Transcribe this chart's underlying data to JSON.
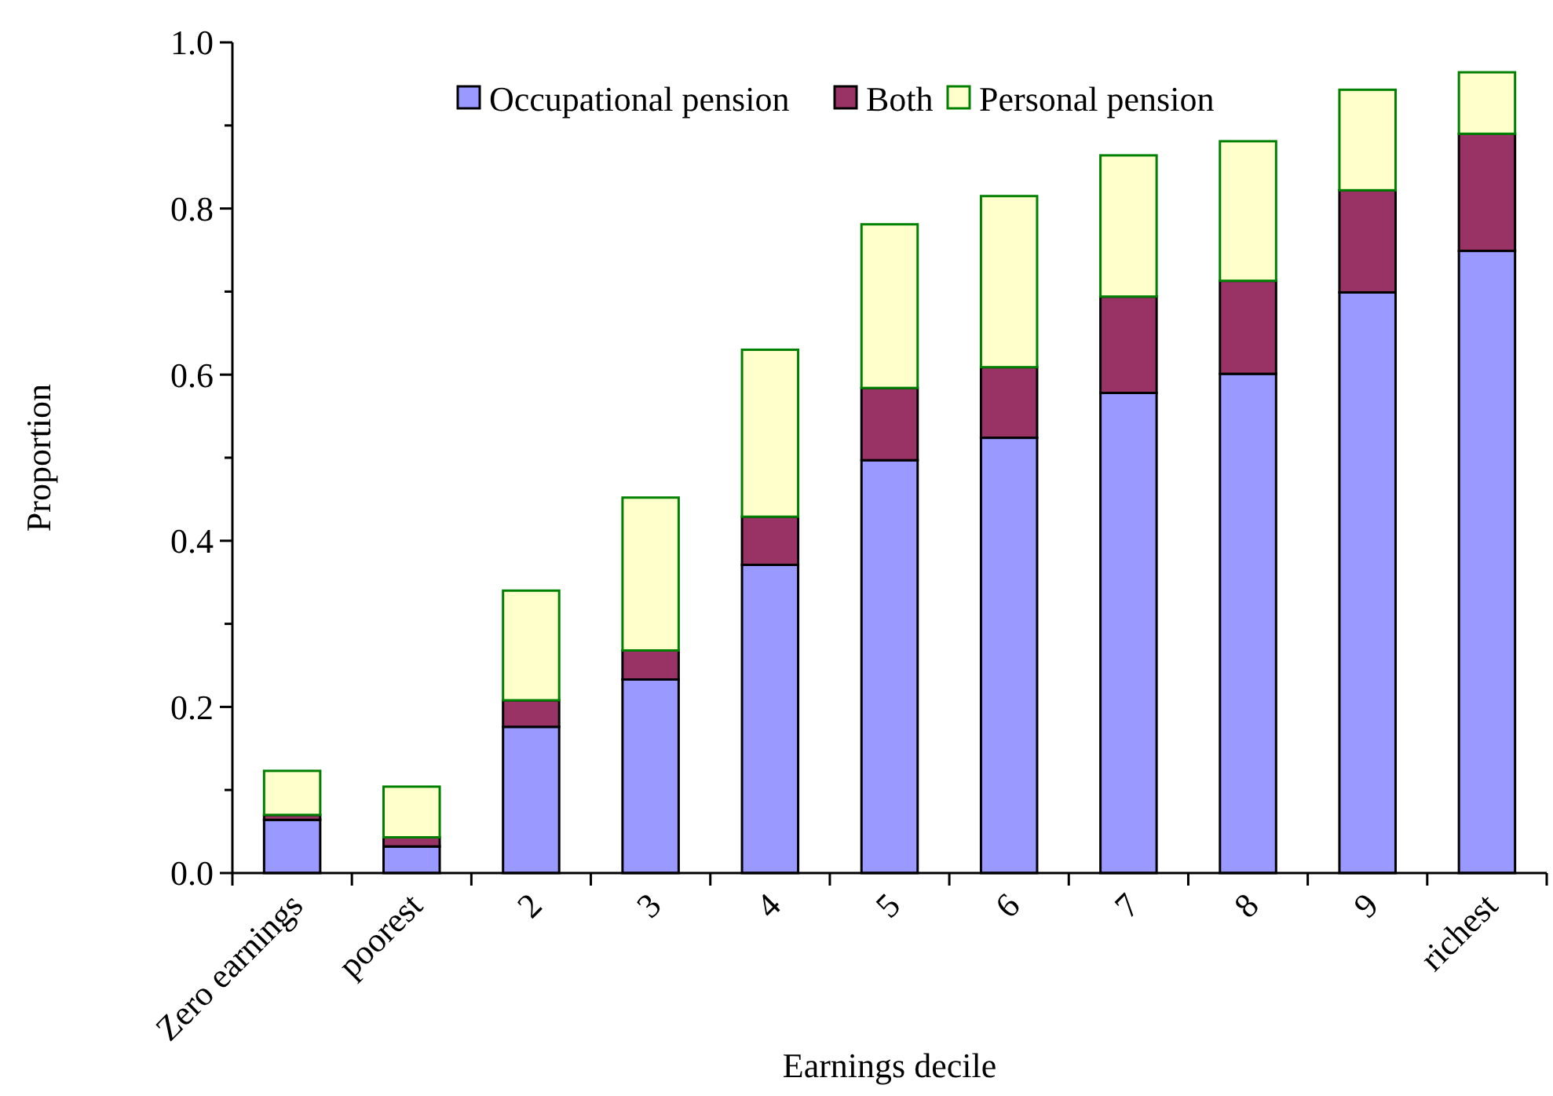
{
  "chart_data": {
    "type": "bar",
    "stacked": true,
    "xlabel": "Earnings decile",
    "ylabel": "Proportion",
    "categories": [
      "Zero earnings",
      "poorest",
      "2",
      "3",
      "4",
      "5",
      "6",
      "7",
      "8",
      "9",
      "richest"
    ],
    "series": [
      {
        "name": "Occupational pension",
        "color": "#9999ff",
        "values": [
          0.064,
          0.032,
          0.176,
          0.233,
          0.371,
          0.497,
          0.524,
          0.578,
          0.601,
          0.699,
          0.749
        ]
      },
      {
        "name": "Both",
        "color": "#993366",
        "values": [
          0.006,
          0.011,
          0.032,
          0.035,
          0.058,
          0.087,
          0.085,
          0.116,
          0.112,
          0.123,
          0.141
        ]
      },
      {
        "name": "Personal pension",
        "color": "#ffffcc",
        "values": [
          0.053,
          0.061,
          0.132,
          0.184,
          0.201,
          0.197,
          0.206,
          0.17,
          0.168,
          0.121,
          0.074
        ]
      }
    ],
    "ylim": [
      0,
      1
    ],
    "yticks": [
      {
        "value": 0,
        "label": "0.0"
      },
      {
        "value": 0.1,
        "label": null
      },
      {
        "value": 0.2,
        "label": "0.2"
      },
      {
        "value": 0.3,
        "label": null
      },
      {
        "value": 0.4,
        "label": "0.4"
      },
      {
        "value": 0.5,
        "label": null
      },
      {
        "value": 0.6,
        "label": "0.6"
      },
      {
        "value": 0.7,
        "label": null
      },
      {
        "value": 0.8,
        "label": "0.8"
      },
      {
        "value": 0.9,
        "label": null
      },
      {
        "value": 1,
        "label": "1.0"
      }
    ],
    "legend": "top",
    "grid": false
  }
}
